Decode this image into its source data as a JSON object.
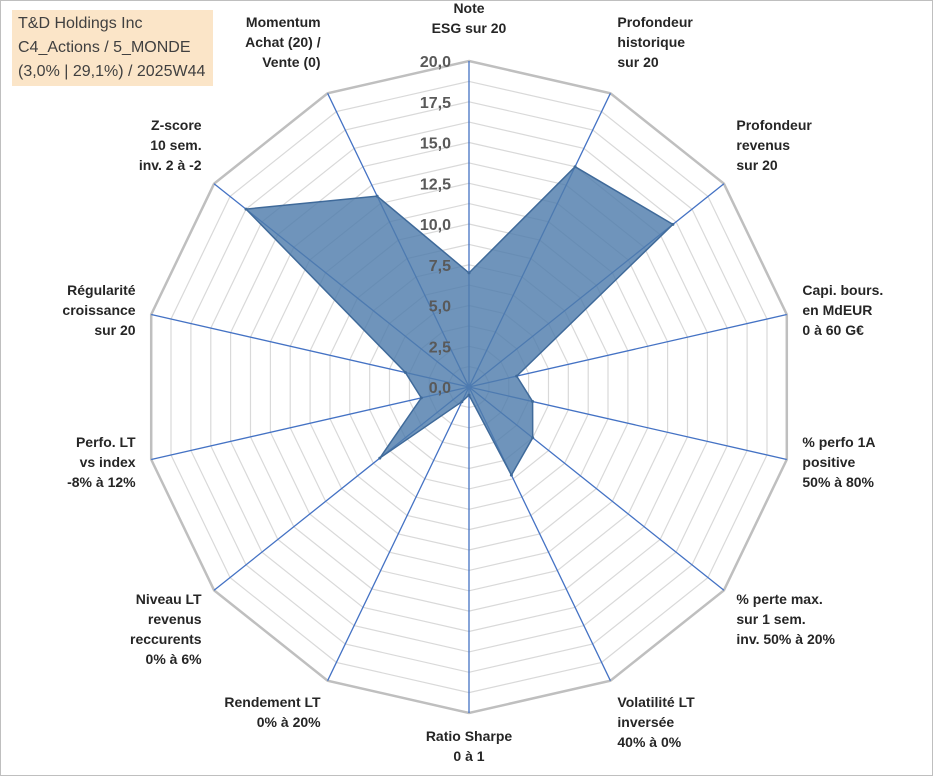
{
  "header": {
    "company": "T&D Holdings Inc",
    "portfolio": "C4_Actions / 5_MONDE",
    "stats": "(3,0% | 29,1%) / 2025W44"
  },
  "chart_data": {
    "type": "radar",
    "title": "",
    "rmax": 20,
    "ticks": [
      "0,0",
      "2,5",
      "5,0",
      "7,5",
      "10,0",
      "12,5",
      "15,0",
      "17,5",
      "20,0"
    ],
    "tick_values": [
      0,
      2.5,
      5,
      7.5,
      10,
      12.5,
      15,
      17.5,
      20
    ],
    "grid_step": 1.25,
    "categories": [
      [
        "Note",
        "ESG sur 20"
      ],
      [
        "Profondeur",
        "historique",
        "sur 20"
      ],
      [
        "Profondeur",
        "revenus",
        "sur 20"
      ],
      [
        "Capi. bours.",
        "en MdEUR",
        "0 à 60 G€"
      ],
      [
        "% perfo 1A",
        "positive",
        "50% à 80%"
      ],
      [
        "% perte max.",
        "sur 1 sem.",
        "inv. 50% à 20%"
      ],
      [
        "Volatilité LT",
        "inversée",
        "40% à 0%"
      ],
      [
        "Ratio Sharpe",
        "0 à 1"
      ],
      [
        "Rendement LT",
        "0% à 20%"
      ],
      [
        "Niveau LT",
        "revenus",
        "reccurents",
        "0% à 6%"
      ],
      [
        "Perfo. LT",
        "vs index",
        "-8% à 12%"
      ],
      [
        "Régularité",
        "croissance",
        "sur 20"
      ],
      [
        "Z-score",
        "10 sem.",
        "inv. 2 à -2"
      ],
      [
        "Momentum",
        "Achat (20) /",
        "Vente (0)"
      ]
    ],
    "series": [
      {
        "values": [
          7.0,
          15.0,
          16.0,
          3.0,
          4.0,
          5.0,
          6.0,
          0.5,
          1.0,
          7.0,
          3.0,
          4.0,
          17.5,
          13.0
        ]
      }
    ],
    "colors": {
      "fill": "#4f7cac",
      "stroke": "#3f6a9a",
      "spokes": "#4472c4",
      "grid": "#d9d9d9",
      "outer": "#bfbfbf"
    },
    "grid": true
  }
}
